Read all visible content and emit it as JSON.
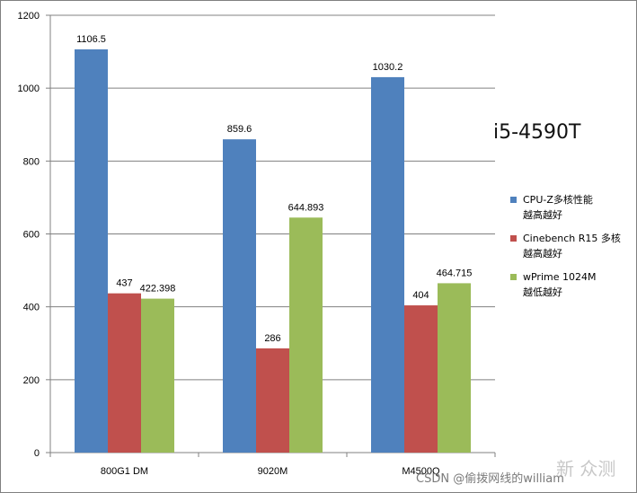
{
  "chart_data": {
    "type": "bar",
    "categories": [
      "800G1 DM",
      "9020M",
      "M4500Q"
    ],
    "series": [
      {
        "name": "CPU-Z多核性能越高越好",
        "legend_lines": [
          "CPU-Z多核性能",
          "越高越好"
        ],
        "color": "#4f81bd",
        "values": [
          1106.5,
          859.6,
          1030.2
        ],
        "labels": [
          "1106.5",
          "859.6",
          "1030.2"
        ]
      },
      {
        "name": "Cinebench R15 多核越高越好",
        "legend_lines": [
          "Cinebench R15 多核",
          "越高越好"
        ],
        "color": "#c0504d",
        "values": [
          437,
          286,
          404
        ],
        "labels": [
          "437",
          "286",
          "404"
        ]
      },
      {
        "name": "wPrime 1024M越低越好",
        "legend_lines": [
          "wPrime 1024M",
          "越低越好"
        ],
        "color": "#9bbb59",
        "values": [
          422.398,
          644.893,
          464.715
        ],
        "labels": [
          "422.398",
          "644.893",
          "464.715"
        ]
      }
    ],
    "ylim": [
      0,
      1200
    ],
    "yticks": [
      "0",
      "200",
      "400",
      "600",
      "800",
      "1000",
      "1200"
    ],
    "grid": true,
    "legend_position": "right",
    "annotation": "i5-4590T"
  },
  "watermark": {
    "text": "CSDN @偷拨网线的william",
    "brand": "新 众测"
  }
}
